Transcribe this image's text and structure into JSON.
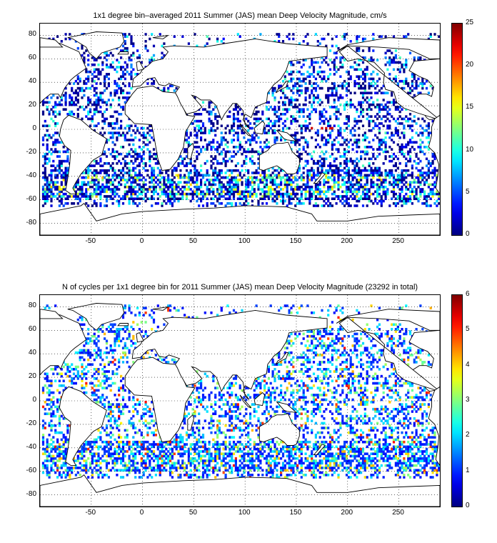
{
  "chart_data": [
    {
      "type": "heatmap",
      "title": "1x1 degree bin–averaged 2011 Summer (JAS) mean Deep Velocity Magnitude, cm/s",
      "xlabel": "",
      "ylabel": "",
      "xlim": [
        -100,
        290
      ],
      "ylim": [
        -90,
        90
      ],
      "x_ticks": [
        -50,
        0,
        50,
        100,
        150,
        200,
        250
      ],
      "y_ticks": [
        80,
        60,
        40,
        20,
        0,
        -20,
        -40,
        -60,
        -80
      ],
      "colorbar": {
        "min": 0,
        "max": 25,
        "ticks": [
          0,
          5,
          10,
          15,
          20,
          25
        ]
      },
      "grid": "dotted",
      "background": "world coastline map",
      "features": [
        {
          "description": "strong zonal jet at equator",
          "lon_range": [
            160,
            190
          ],
          "lat": 0,
          "value": 23
        },
        {
          "description": "Antarctic Circumpolar Current band",
          "lat_range": [
            -60,
            -40
          ],
          "typical_value": 10
        }
      ]
    },
    {
      "type": "heatmap",
      "title": "N of cycles per 1x1 degree bin for 2011 Summer (JAS) mean Deep Velocity Magnitude (23292 in total)",
      "xlabel": "",
      "ylabel": "",
      "xlim": [
        -100,
        290
      ],
      "ylim": [
        -90,
        90
      ],
      "x_ticks": [
        -50,
        0,
        50,
        100,
        150,
        200,
        250
      ],
      "y_ticks": [
        80,
        60,
        40,
        20,
        0,
        -20,
        -40,
        -60,
        -80
      ],
      "colorbar": {
        "min": 0,
        "max": 6,
        "ticks": [
          0,
          1,
          2,
          3,
          4,
          5,
          6
        ]
      },
      "total_cycles": 23292,
      "grid": "dotted",
      "background": "world coastline map"
    }
  ],
  "colormap": "jet"
}
